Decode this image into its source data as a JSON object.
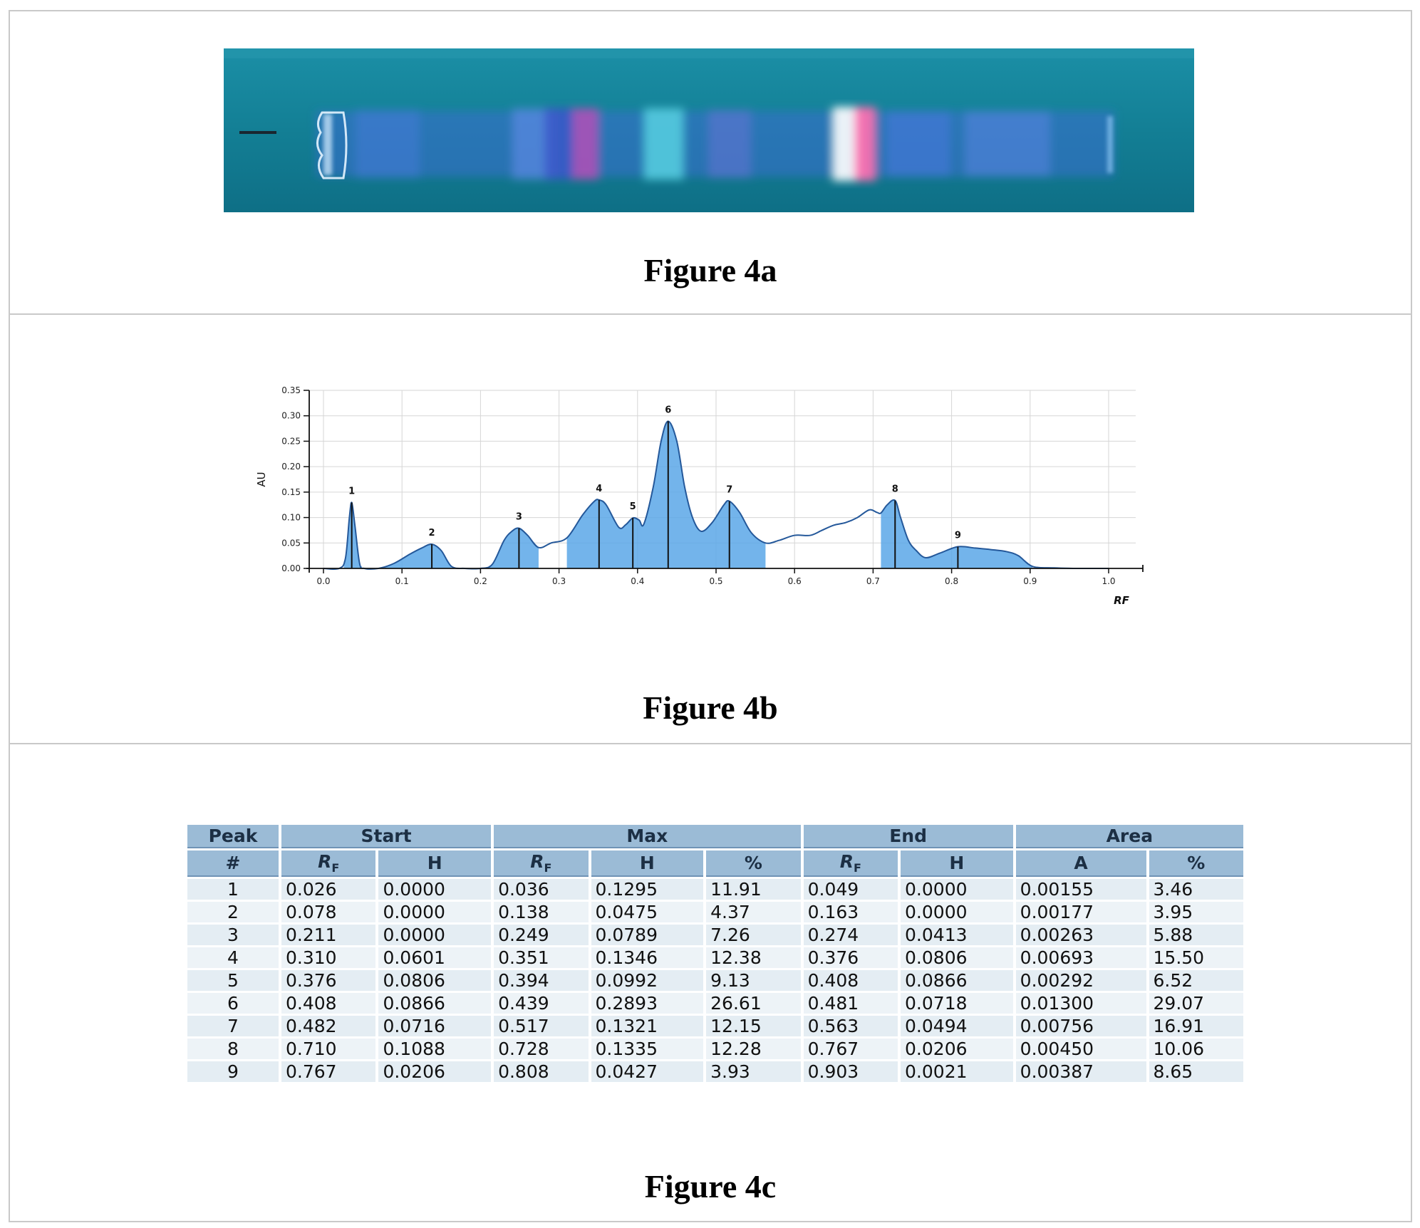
{
  "captions": {
    "a": "Figure 4a",
    "b": "Figure 4b",
    "c": "Figure 4c"
  },
  "chart_data": [
    {
      "type": "area",
      "title": "",
      "xlabel": "RF",
      "ylabel": "AU",
      "xlim": [
        0.0,
        1.0
      ],
      "ylim": [
        0.0,
        0.35
      ],
      "x_ticks": [
        "0.0",
        "0.1",
        "0.2",
        "0.3",
        "0.4",
        "0.5",
        "0.6",
        "0.7",
        "0.8",
        "0.9",
        "1.0"
      ],
      "y_ticks": [
        "0.00",
        "0.05",
        "0.10",
        "0.15",
        "0.20",
        "0.25",
        "0.30",
        "0.35"
      ],
      "grid": true,
      "colors": {
        "fill": "#5aa7e8",
        "line": "#24589a",
        "grid": "#d6d6d6"
      },
      "trace": {
        "x": [
          0.0,
          0.02,
          0.028,
          0.033,
          0.036,
          0.04,
          0.046,
          0.052,
          0.07,
          0.09,
          0.11,
          0.125,
          0.138,
          0.15,
          0.163,
          0.18,
          0.2,
          0.215,
          0.23,
          0.24,
          0.249,
          0.26,
          0.274,
          0.29,
          0.31,
          0.33,
          0.345,
          0.351,
          0.36,
          0.376,
          0.385,
          0.394,
          0.402,
          0.408,
          0.42,
          0.43,
          0.439,
          0.45,
          0.46,
          0.47,
          0.481,
          0.495,
          0.51,
          0.517,
          0.53,
          0.545,
          0.563,
          0.58,
          0.6,
          0.62,
          0.635,
          0.65,
          0.665,
          0.68,
          0.695,
          0.705,
          0.71,
          0.718,
          0.728,
          0.735,
          0.745,
          0.755,
          0.767,
          0.785,
          0.808,
          0.83,
          0.85,
          0.87,
          0.885,
          0.903,
          0.93,
          0.96,
          1.0
        ],
        "y": [
          0.0,
          0.0,
          0.02,
          0.1,
          0.1295,
          0.085,
          0.01,
          0.0,
          0.0,
          0.01,
          0.028,
          0.04,
          0.0475,
          0.035,
          0.004,
          0.0,
          0.0,
          0.008,
          0.055,
          0.073,
          0.0789,
          0.065,
          0.041,
          0.05,
          0.06,
          0.105,
          0.132,
          0.1346,
          0.125,
          0.081,
          0.086,
          0.0992,
          0.095,
          0.087,
          0.16,
          0.25,
          0.2893,
          0.25,
          0.16,
          0.1,
          0.073,
          0.09,
          0.125,
          0.1321,
          0.11,
          0.07,
          0.05,
          0.055,
          0.065,
          0.065,
          0.075,
          0.085,
          0.09,
          0.1,
          0.115,
          0.11,
          0.109,
          0.125,
          0.1335,
          0.1,
          0.055,
          0.035,
          0.021,
          0.03,
          0.0427,
          0.04,
          0.037,
          0.033,
          0.025,
          0.004,
          0.001,
          0.0,
          0.0
        ]
      },
      "shaded_ranges": [
        [
          0.026,
          0.049
        ],
        [
          0.078,
          0.163
        ],
        [
          0.211,
          0.274
        ],
        [
          0.31,
          0.563
        ],
        [
          0.71,
          0.903
        ]
      ],
      "peaks": [
        {
          "label": "1",
          "x": 0.036,
          "y": 0.1295
        },
        {
          "label": "2",
          "x": 0.138,
          "y": 0.0475
        },
        {
          "label": "3",
          "x": 0.249,
          "y": 0.0789
        },
        {
          "label": "4",
          "x": 0.351,
          "y": 0.1346
        },
        {
          "label": "5",
          "x": 0.394,
          "y": 0.0992
        },
        {
          "label": "6",
          "x": 0.439,
          "y": 0.2893
        },
        {
          "label": "7",
          "x": 0.517,
          "y": 0.1321
        },
        {
          "label": "8",
          "x": 0.728,
          "y": 0.1335
        },
        {
          "label": "9",
          "x": 0.808,
          "y": 0.0427
        }
      ]
    },
    {
      "type": "table",
      "group_headers": [
        "Peak",
        "Start",
        "Max",
        "End",
        "Area"
      ],
      "peak_hash": "#",
      "sub_headers": {
        "start_rf": "R",
        "start_h": "H",
        "max_rf": "R",
        "max_h": "H",
        "max_pct": "%",
        "end_rf": "R",
        "end_h": "H",
        "area_a": "A",
        "area_pct": "%",
        "rf_sub": "F"
      },
      "rows": [
        [
          "1",
          "0.026",
          "0.0000",
          "0.036",
          "0.1295",
          "11.91",
          "0.049",
          "0.0000",
          "0.00155",
          "3.46"
        ],
        [
          "2",
          "0.078",
          "0.0000",
          "0.138",
          "0.0475",
          "4.37",
          "0.163",
          "0.0000",
          "0.00177",
          "3.95"
        ],
        [
          "3",
          "0.211",
          "0.0000",
          "0.249",
          "0.0789",
          "7.26",
          "0.274",
          "0.0413",
          "0.00263",
          "5.88"
        ],
        [
          "4",
          "0.310",
          "0.0601",
          "0.351",
          "0.1346",
          "12.38",
          "0.376",
          "0.0806",
          "0.00693",
          "15.50"
        ],
        [
          "5",
          "0.376",
          "0.0806",
          "0.394",
          "0.0992",
          "9.13",
          "0.408",
          "0.0866",
          "0.00292",
          "6.52"
        ],
        [
          "6",
          "0.408",
          "0.0866",
          "0.439",
          "0.2893",
          "26.61",
          "0.481",
          "0.0718",
          "0.01300",
          "29.07"
        ],
        [
          "7",
          "0.482",
          "0.0716",
          "0.517",
          "0.1321",
          "12.15",
          "0.563",
          "0.0494",
          "0.00756",
          "16.91"
        ],
        [
          "8",
          "0.710",
          "0.1088",
          "0.728",
          "0.1335",
          "12.28",
          "0.767",
          "0.0206",
          "0.00450",
          "10.06"
        ],
        [
          "9",
          "0.767",
          "0.0206",
          "0.808",
          "0.0427",
          "3.93",
          "0.903",
          "0.0021",
          "0.00387",
          "8.65"
        ]
      ]
    }
  ]
}
